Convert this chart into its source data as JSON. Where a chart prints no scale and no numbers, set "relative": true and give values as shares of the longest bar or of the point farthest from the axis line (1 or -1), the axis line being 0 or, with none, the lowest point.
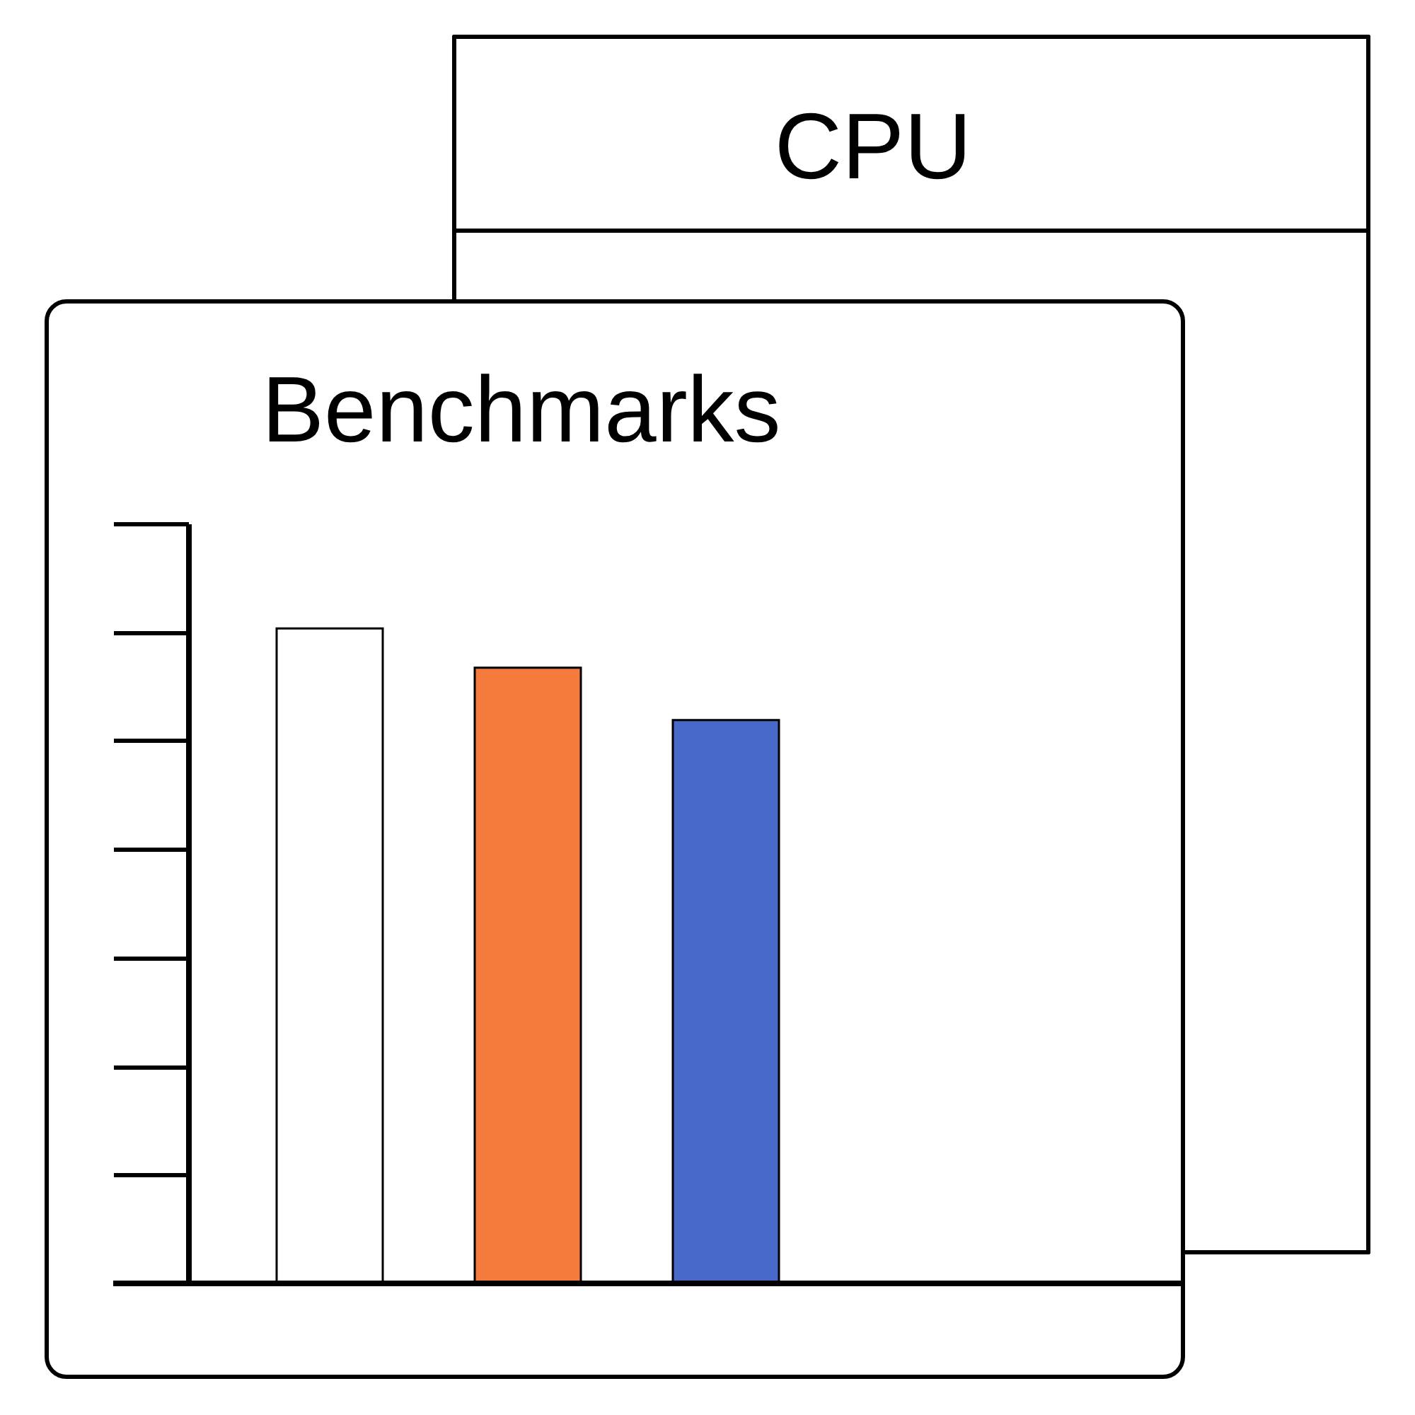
{
  "chart_data": {
    "type": "bar",
    "title": "Benchmarks",
    "categories": [
      null,
      null,
      null
    ],
    "values": [
      1,
      0.94,
      0.86
    ],
    "colors": [
      "#ffffff",
      "#f47b3c",
      "#4869c9"
    ],
    "relative": true,
    "grid": false,
    "legend": false,
    "annotations": [
      "CPU"
    ]
  }
}
